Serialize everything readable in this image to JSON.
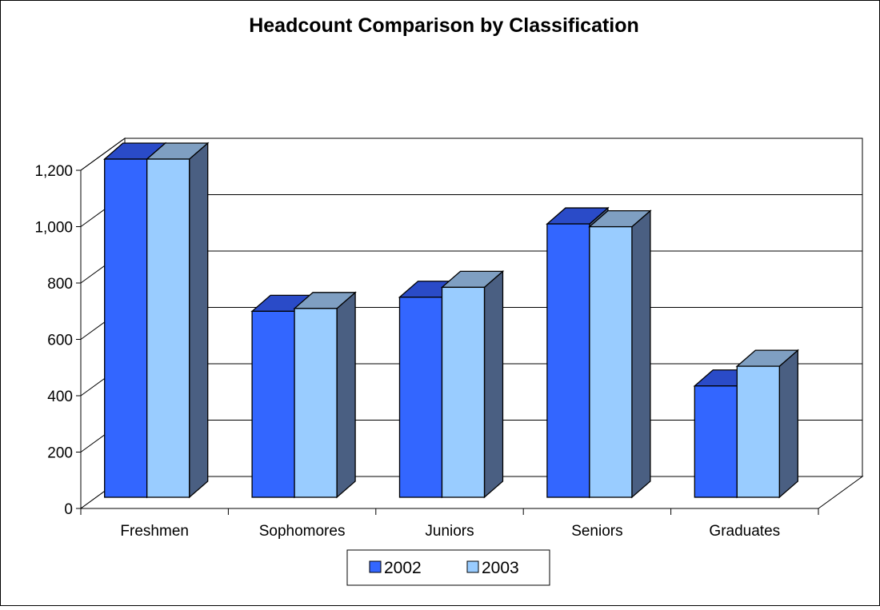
{
  "chart_data": {
    "type": "bar",
    "title": "Headcount Comparison by Classification",
    "categories": [
      "Freshmen",
      "Sophomores",
      "Juniors",
      "Seniors",
      "Graduates"
    ],
    "series": [
      {
        "name": "2002",
        "values": [
          1200,
          660,
          710,
          970,
          395
        ],
        "color": "#3366ff",
        "top_color": "#2a4bc8",
        "side_color": "#4a5f82"
      },
      {
        "name": "2003",
        "values": [
          1200,
          670,
          745,
          960,
          465
        ],
        "color": "#99ccff",
        "top_color": "#7f9fc2",
        "side_color": "#4a5f82"
      }
    ],
    "y_ticks": [
      "0",
      "200",
      "400",
      "600",
      "800",
      "1,000",
      "1,200"
    ],
    "ylim": [
      0,
      1200
    ],
    "xlabel": "",
    "ylabel": "",
    "grid": true,
    "legend": "bottom"
  }
}
